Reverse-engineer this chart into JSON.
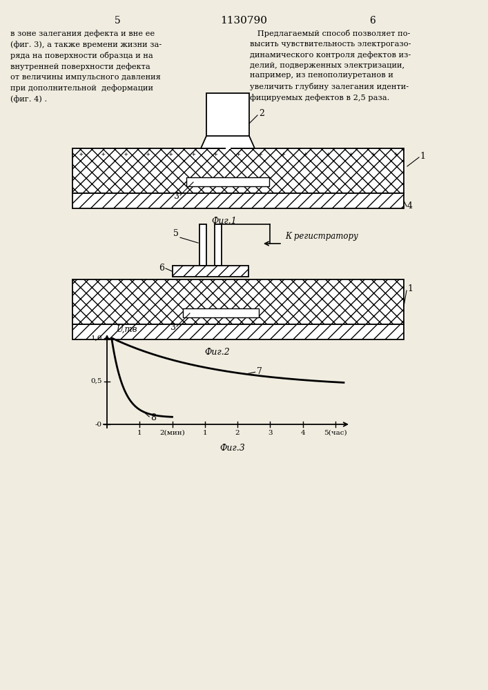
{
  "bg_color": "#f0ece0",
  "page_number_left": "5",
  "page_number_center": "1130790",
  "page_number_right": "6",
  "left_text": "в зоне залегания дефекта и вне ее\n(фиг. 3), а также времени жизни за-\nряда на поверхности образца и на\nвнутренней поверхности дефекта\nот величины импульсного давления\nпри дополнительной  деформации\n(фиг. 4) .",
  "right_text": "   Предлагаемый способ позволяет по-\nвысить чувствительность электрогазо-\nдинамического контроля дефектов из-\nделий, подверженных электризации,\nнапример, из пенополиуретанов и\nувеличить глубину залегания иденти-\nфицируемых дефектов в 2,5 раза.",
  "fig1_label": "Фиг.1",
  "fig2_label": "Фиг.2",
  "fig3_label": "Фиг.3",
  "label_1a": "1",
  "label_2": "2",
  "label_3a": "3",
  "label_4": "4",
  "label_1b": "1",
  "label_5": "5",
  "label_6": "6",
  "label_3b": "3",
  "label_k_reg": "К регистратору",
  "curve7_label": "7",
  "curve8_label": "8",
  "ylabel": "U,тв",
  "ytick_1": "1,0",
  "ytick_05": "0,5",
  "ytick_0": "-0",
  "xtick_labels": [
    "1",
    "2(мин)",
    "1",
    "2",
    "3",
    "4",
    "5(час)"
  ]
}
